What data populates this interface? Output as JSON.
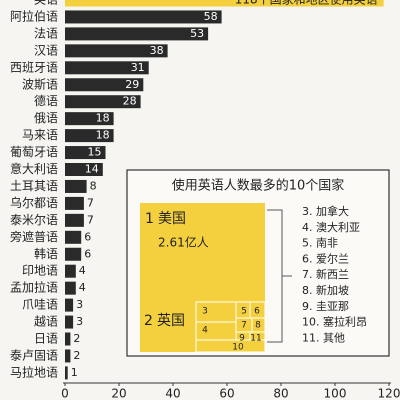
{
  "chart_data": {
    "type": "barh",
    "categories": [
      "英语",
      "阿拉伯语",
      "法语",
      "汉语",
      "西班牙语",
      "波斯语",
      "德语",
      "俄语",
      "马来语",
      "葡萄牙语",
      "意大利语",
      "土耳其语",
      "乌尔都语",
      "泰米尔语",
      "旁遮普语",
      "韩语",
      "印地语",
      "孟加拉语",
      "爪哇语",
      "越语",
      "日语",
      "泰卢固语",
      "马拉地语"
    ],
    "values": [
      118,
      58,
      53,
      38,
      31,
      29,
      28,
      18,
      18,
      15,
      14,
      8,
      7,
      7,
      6,
      6,
      4,
      4,
      3,
      3,
      2,
      2,
      1
    ],
    "color": "#2a2a2a",
    "highlight_color": "#f4d03f",
    "annotation": "118个国家和地区使用英语",
    "xlim": [
      0,
      120
    ],
    "xticks": [
      0,
      20,
      40,
      60,
      80,
      100,
      120
    ]
  },
  "inset": {
    "title": "使用英语人数最多的10个国家",
    "rank1": "1",
    "rank1_country": "美国",
    "rank1_value": "2.61亿人",
    "rank2": "2",
    "rank2_country": "英国",
    "small_labels": [
      "3",
      "4",
      "5",
      "6",
      "7",
      "8",
      "9",
      "11",
      "10"
    ],
    "list": [
      "3. 加拿大",
      "4. 澳大利亚",
      "5. 南非",
      "6. 爱尔兰",
      "7. 新西兰",
      "8. 新加坡",
      "9. 圭亚那",
      "10. 塞拉利昂",
      "11. 其他"
    ]
  }
}
